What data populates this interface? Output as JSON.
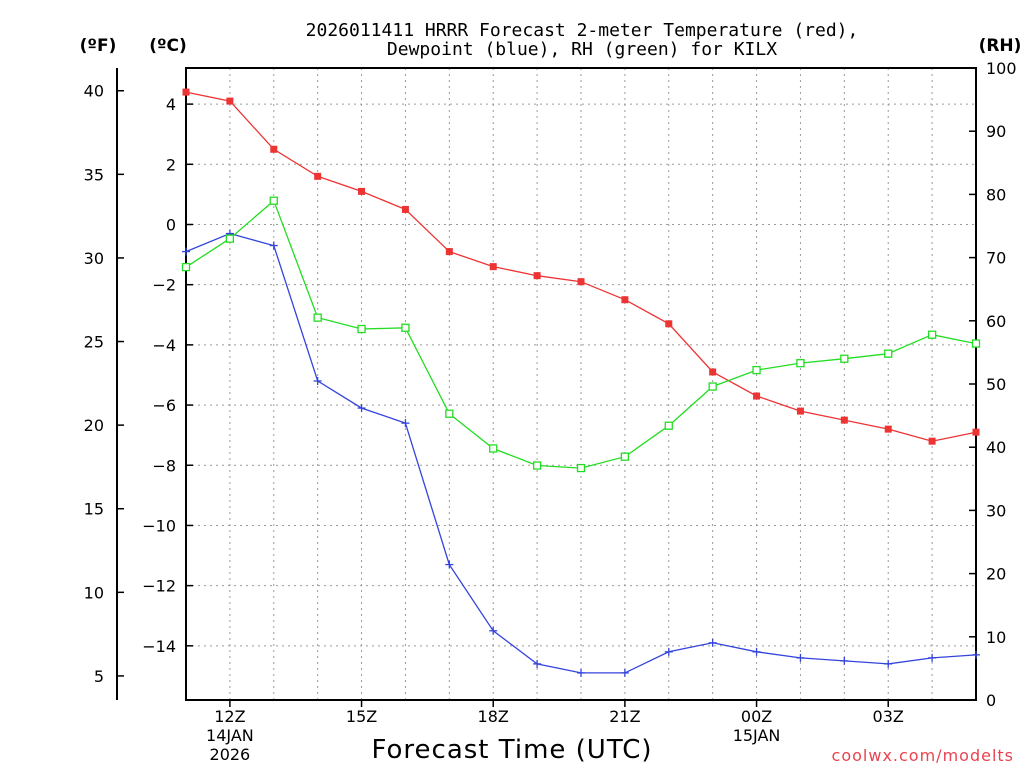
{
  "title": {
    "line1": "2026011411 HRRR Forecast 2-meter Temperature (red),",
    "line2": "Dewpoint (blue), RH (green) for KILX"
  },
  "units": {
    "fahrenheit": "(ºF)",
    "celsius": "(ºC)",
    "rh": "(RH)"
  },
  "credit": "coolwx.com/modelts",
  "colors": {
    "temperature": "#ee3333",
    "dewpoint": "#3344dd",
    "rh": "#22dd22",
    "credit": "#e8434f"
  },
  "chart_data": {
    "type": "line",
    "title": "2026011411 HRRR Forecast 2-meter Temperature (red), Dewpoint (blue), RH (green) for KILX",
    "xlabel": "Forecast Time (UTC)",
    "x": [
      11,
      12,
      13,
      14,
      15,
      16,
      17,
      18,
      19,
      20,
      21,
      22,
      23,
      24,
      25,
      26,
      27,
      28,
      29
    ],
    "x_unit": "hours UTC from 00Z 14JAN2026",
    "xlim": [
      11,
      29
    ],
    "x_ticks": [
      {
        "value": 12,
        "label": "12Z",
        "date": "14JAN",
        "year": "2026"
      },
      {
        "value": 15,
        "label": "15Z",
        "date": "",
        "year": ""
      },
      {
        "value": 18,
        "label": "18Z",
        "date": "",
        "year": ""
      },
      {
        "value": 21,
        "label": "21Z",
        "date": "",
        "year": ""
      },
      {
        "value": 24,
        "label": "00Z",
        "date": "15JAN",
        "year": ""
      },
      {
        "value": 27,
        "label": "03Z",
        "date": "",
        "year": ""
      }
    ],
    "y_celsius": {
      "label": "(ºC)",
      "ylim": [
        -15.8,
        5.2
      ],
      "ticks": [
        4,
        2,
        0,
        -2,
        -4,
        -6,
        -8,
        -10,
        -12,
        -14
      ]
    },
    "y_fahrenheit": {
      "label": "(ºF)",
      "ticks": [
        40,
        35,
        30,
        25,
        20,
        15,
        10,
        5
      ]
    },
    "y_rh": {
      "label": "(RH)",
      "ylim": [
        0,
        100
      ],
      "ticks": [
        100,
        90,
        80,
        70,
        60,
        50,
        40,
        30,
        20,
        10,
        0
      ]
    },
    "grid": true,
    "series": [
      {
        "name": "Temperature",
        "axis": "celsius",
        "color": "#ee3333",
        "marker": "filled-square",
        "values": [
          4.4,
          4.1,
          2.5,
          1.6,
          1.1,
          0.5,
          -0.9,
          -1.4,
          -1.7,
          -1.9,
          -2.5,
          -3.3,
          -4.9,
          -5.7,
          -6.2,
          -6.5,
          -6.8,
          -7.2,
          -6.9
        ]
      },
      {
        "name": "Dewpoint",
        "axis": "celsius",
        "color": "#3344dd",
        "marker": "plus",
        "values": [
          -0.9,
          -0.3,
          -0.7,
          -5.2,
          -6.1,
          -6.6,
          -11.3,
          -13.5,
          -14.6,
          -14.9,
          -14.9,
          -14.2,
          -13.9,
          -14.2,
          -14.4,
          -14.5,
          -14.6,
          -14.4,
          -14.3
        ]
      },
      {
        "name": "RH",
        "axis": "rh",
        "color": "#22dd22",
        "marker": "open-square",
        "values": [
          68.5,
          73,
          79,
          60.5,
          58.7,
          58.9,
          45.3,
          39.8,
          37.1,
          36.7,
          38.5,
          43.4,
          49.6,
          52.2,
          53.3,
          54,
          54.8,
          57.8,
          56.4
        ]
      }
    ]
  }
}
